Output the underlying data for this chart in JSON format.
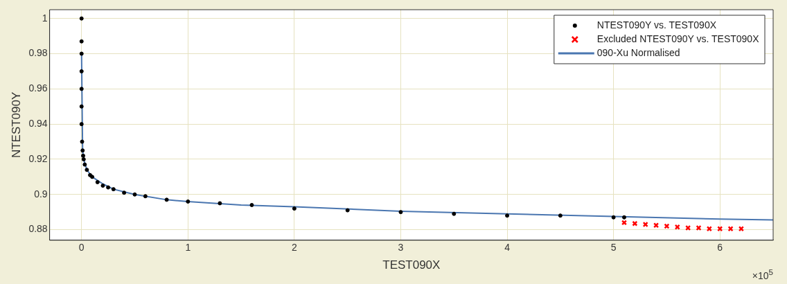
{
  "chart_data": {
    "type": "scatter",
    "xlabel": "TEST090X",
    "ylabel": "NTEST090Y",
    "xlim": [
      -0.3,
      6.5
    ],
    "ylim": [
      0.874,
      1.005
    ],
    "xticks": [
      0,
      1,
      2,
      3,
      4,
      5,
      6
    ],
    "yticks": [
      0.88,
      0.9,
      0.92,
      0.94,
      0.96,
      0.98,
      1
    ],
    "annotations": [
      "×10$^{5}$"
    ],
    "grid": true,
    "legend": "top right",
    "series": [
      {
        "name": "NTEST090Y vs. TEST090X",
        "marker": "circle",
        "color": "#000000",
        "x": [
          0,
          0,
          0,
          0,
          0,
          0,
          0,
          0.005,
          0.01,
          0.015,
          0.02,
          0.03,
          0.05,
          0.08,
          0.1,
          0.15,
          0.2,
          0.25,
          0.3,
          0.4,
          0.5,
          0.6,
          0.8,
          1,
          1.3,
          1.6,
          2,
          2.5,
          3,
          3.5,
          4,
          4.5,
          5,
          5.1
        ],
        "values": [
          1,
          0.987,
          0.98,
          0.97,
          0.96,
          0.95,
          0.94,
          0.93,
          0.925,
          0.922,
          0.92,
          0.917,
          0.914,
          0.911,
          0.91,
          0.907,
          0.905,
          0.904,
          0.903,
          0.901,
          0.9,
          0.899,
          0.897,
          0.896,
          0.895,
          0.894,
          0.892,
          0.891,
          0.89,
          0.889,
          0.888,
          0.888,
          0.887,
          0.887
        ]
      },
      {
        "name": "Excluded NTEST090Y vs. TEST090X",
        "marker": "cross",
        "color": "#ff0000",
        "x": [
          5.1,
          5.2,
          5.3,
          5.4,
          5.5,
          5.6,
          5.7,
          5.8,
          5.9,
          6,
          6.1,
          6.2
        ],
        "values": [
          0.884,
          0.8835,
          0.883,
          0.8825,
          0.882,
          0.8815,
          0.881,
          0.881,
          0.8805,
          0.8805,
          0.8805,
          0.8805
        ]
      },
      {
        "name": "090-Xu Normalised",
        "type": "line",
        "marker": "none",
        "color": "#4a76b0",
        "x": [
          0,
          0.01,
          0.02,
          0.05,
          0.1,
          0.2,
          0.3,
          0.5,
          0.8,
          1,
          1.5,
          2,
          3,
          4,
          5,
          6,
          6.5
        ],
        "values": [
          0.98,
          0.925,
          0.92,
          0.914,
          0.91,
          0.906,
          0.903,
          0.9,
          0.897,
          0.896,
          0.894,
          0.893,
          0.8905,
          0.889,
          0.8875,
          0.886,
          0.8855
        ]
      }
    ]
  }
}
